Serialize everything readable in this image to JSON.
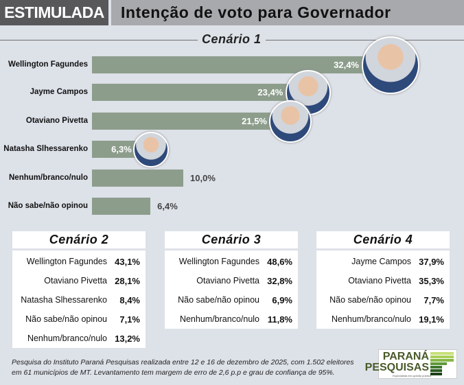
{
  "header": {
    "tag": "ESTIMULADA",
    "title": "Intenção de voto para Governador"
  },
  "chart_data": {
    "type": "bar",
    "title": "Cenário 1",
    "orientation": "horizontal",
    "categories": [
      "Wellington Fagundes",
      "Jayme Campos",
      "Otaviano Pivetta",
      "Natasha Slhessarenko",
      "Nenhum/branco/nulo",
      "Não sabe/não opinou"
    ],
    "values": [
      32.4,
      23.4,
      21.5,
      6.3,
      10.0,
      6.4
    ],
    "labels": [
      "32,4%",
      "23,4%",
      "21,5%",
      "6,3%",
      "10,0%",
      "6,4%"
    ],
    "has_photo": [
      true,
      true,
      true,
      true,
      false,
      false
    ],
    "unit": "%",
    "bar_color": "#8d9d8c"
  },
  "scenarios": [
    {
      "title": "Cenário 2",
      "rows": [
        {
          "name": "Wellington Fagundes",
          "value": "43,1%"
        },
        {
          "name": "Otaviano Pivetta",
          "value": "28,1%"
        },
        {
          "name": "Natasha Slhessarenko",
          "value": "8,4%"
        },
        {
          "name": "Não sabe/não opinou",
          "value": "7,1%"
        },
        {
          "name": "Nenhum/branco/nulo",
          "value": "13,2%"
        }
      ]
    },
    {
      "title": "Cenário 3",
      "rows": [
        {
          "name": "Wellington Fagundes",
          "value": "48,6%"
        },
        {
          "name": "Otaviano Pivetta",
          "value": "32,8%"
        },
        {
          "name": "Não sabe/não opinou",
          "value": "6,9%"
        },
        {
          "name": "Nenhum/branco/nulo",
          "value": "11,8%"
        }
      ]
    },
    {
      "title": "Cenário 4",
      "rows": [
        {
          "name": "Jayme Campos",
          "value": "37,9%"
        },
        {
          "name": "Otaviano Pivetta",
          "value": "35,3%"
        },
        {
          "name": "Não sabe/não opinou",
          "value": "7,7%"
        },
        {
          "name": "Nenhum/branco/nulo",
          "value": "19,1%"
        }
      ]
    }
  ],
  "footer": {
    "line1": "Pesquisa do Instituto Paraná Pesquisas realizada entre 12 e 16 de dezembro de 2025, com 1.502 eleitores",
    "line2": "em 61 municípios de MT. Levantamento tem margem de erro de 2,6 p.p e grau de confiança de 95%."
  },
  "logo": {
    "line1": "PARANÁ",
    "line2": "PESQUISAS",
    "tagline": "Especialista em opinião pública"
  }
}
